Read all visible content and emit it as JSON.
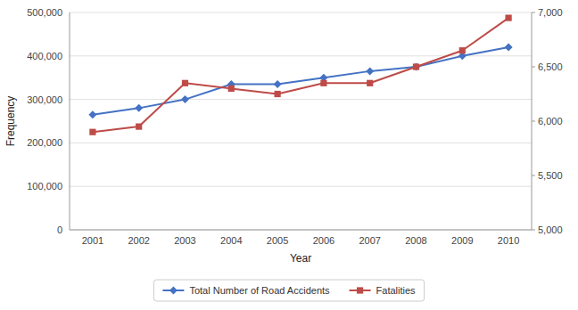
{
  "chart_data": {
    "type": "line",
    "x_label": "Year",
    "y_label": "Frequency",
    "categories": [
      "2001",
      "2002",
      "2003",
      "2004",
      "2005",
      "2006",
      "2007",
      "2008",
      "2009",
      "2010"
    ],
    "series": [
      {
        "name": "Total Number of Road Accidents",
        "color": "#4472C4",
        "marker": "diamond",
        "axis": "y",
        "values": [
          265000,
          280000,
          300000,
          335000,
          335000,
          350000,
          365000,
          375000,
          400000,
          420000
        ]
      },
      {
        "name": "Fatalities",
        "color": "#BE4B48",
        "marker": "square",
        "axis": "y2",
        "values": [
          5900,
          5950,
          6350,
          6300,
          6250,
          6350,
          6350,
          6500,
          6650,
          6950
        ]
      }
    ],
    "ylim": [
      0,
      500000
    ],
    "yticks": [
      0,
      {
        "value": 100000,
        "label": "100,000"
      },
      {
        "value": 200000,
        "label": "200,000"
      },
      {
        "value": 300000,
        "label": "300,000"
      },
      {
        "value": 400000,
        "label": "400,000"
      },
      {
        "value": 500000,
        "label": "500,000"
      }
    ],
    "y2lim": [
      5000,
      7000
    ],
    "y2ticks": [
      {
        "value": 5000,
        "label": "5,000"
      },
      {
        "value": 5500,
        "label": "5,500"
      },
      {
        "value": 6000,
        "label": "6,000"
      },
      {
        "value": 6500,
        "label": "6,500"
      },
      {
        "value": 7000,
        "label": "7,000"
      }
    ],
    "grid": true,
    "legend": "bottom"
  }
}
